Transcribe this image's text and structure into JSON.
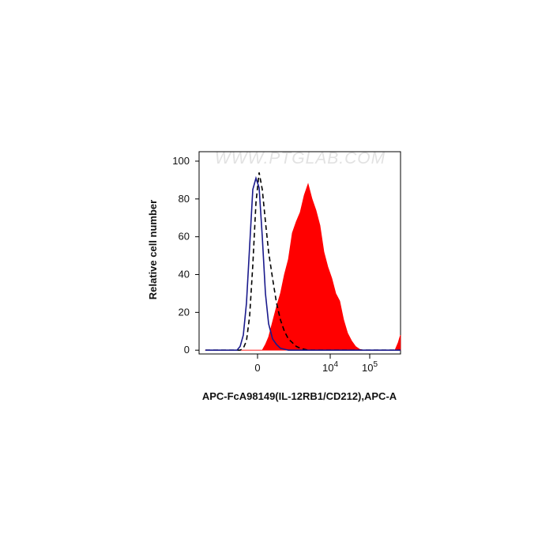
{
  "chart_data": {
    "type": "histogram-overlay",
    "watermark": "WWW.PTGLAB.COM",
    "xlabel": "APC-FcA98149(IL-12RB1/CD212),APC-A",
    "ylabel": "Relative cell number",
    "xscale": "biexponential",
    "xlim": [
      -4361,
      602276
    ],
    "xticks": [
      0,
      {
        "value": 10000,
        "label": "10",
        "exponent": "4"
      },
      {
        "value": 100000,
        "label": "10",
        "exponent": "5"
      }
    ],
    "ylim": [
      -2,
      105
    ],
    "yticks": [
      0,
      20,
      40,
      60,
      80,
      100
    ],
    "x": [
      -3011,
      -731,
      -434,
      -346,
      -268,
      -199,
      -138,
      -81,
      -27,
      27,
      81,
      138,
      199,
      286,
      389,
      512,
      661,
      846,
      1077,
      1364,
      1726,
      2182,
      2746,
      3459,
      4361,
      5491,
      6907,
      8699,
      10953,
      13785,
      17369,
      21848,
      27542,
      34680,
      43639,
      54910,
      69187,
      173689,
      436679,
      524824,
      600000
    ],
    "series": [
      {
        "style": "area",
        "color": "#ff0000",
        "values": [
          0,
          0,
          0,
          0,
          0,
          0,
          0,
          0,
          0,
          0,
          0,
          3,
          7,
          15,
          23,
          30,
          40,
          48,
          62,
          68,
          73,
          82,
          88,
          80,
          74,
          66,
          52,
          44,
          38,
          30,
          26,
          16,
          9,
          5,
          2,
          0.5,
          0,
          0,
          0,
          4,
          8
        ]
      },
      {
        "style": "dashed",
        "color": "#000000",
        "values": [
          0,
          0,
          0,
          0,
          1,
          5,
          18,
          45,
          78,
          94,
          85,
          68,
          52,
          38,
          25,
          16,
          10,
          6,
          4,
          2,
          1,
          0.5,
          0,
          0,
          0,
          0,
          0,
          0,
          0,
          0,
          0,
          0,
          0,
          0,
          0,
          0,
          0,
          0,
          0,
          0,
          0
        ]
      },
      {
        "style": "line",
        "color": "#1a1a8c",
        "values": [
          0,
          0,
          0,
          2,
          8,
          25,
          55,
          85,
          91,
          86,
          60,
          30,
          14,
          6,
          3,
          1,
          0.5,
          0,
          0,
          0,
          0,
          0,
          0,
          0,
          0,
          0,
          0,
          0,
          0,
          0,
          0,
          0,
          0,
          0,
          0,
          0,
          0,
          0,
          0,
          0,
          0
        ]
      }
    ]
  }
}
